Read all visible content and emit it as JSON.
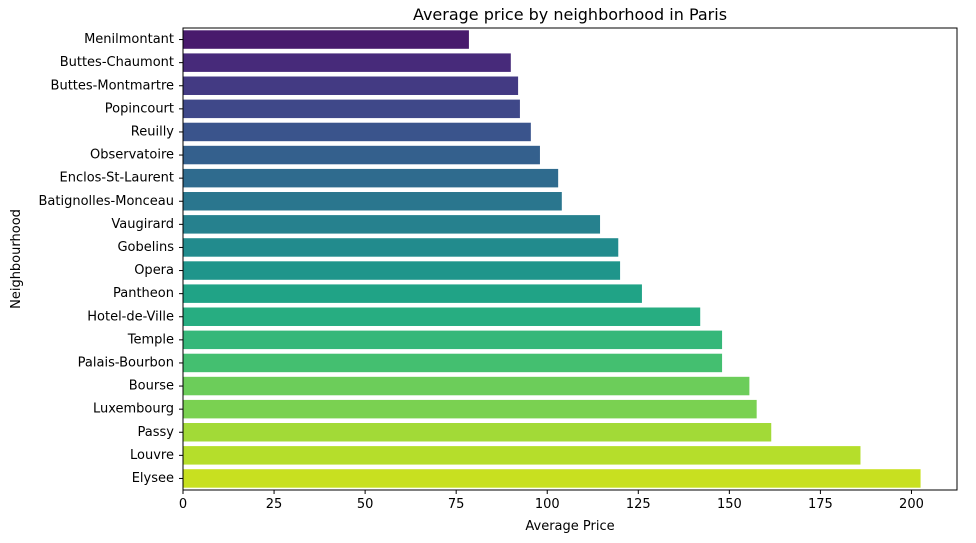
{
  "chart_data": {
    "type": "bar",
    "orientation": "horizontal",
    "title": "Average price by neighborhood in Paris",
    "xlabel": "Average Price",
    "ylabel": "Neighbourhood",
    "xlim": [
      0,
      212.5
    ],
    "xticks": [
      0,
      25,
      50,
      75,
      100,
      125,
      150,
      175,
      200
    ],
    "grid": false,
    "colormap": "viridis",
    "categories": [
      "Menilmontant",
      "Buttes-Chaumont",
      "Buttes-Montmartre",
      "Popincourt",
      "Reuilly",
      "Observatoire",
      "Enclos-St-Laurent",
      "Batignolles-Monceau",
      "Vaugirard",
      "Gobelins",
      "Opera",
      "Pantheon",
      "Hotel-de-Ville",
      "Temple",
      "Palais-Bourbon",
      "Bourse",
      "Luxembourg",
      "Passy",
      "Louvre",
      "Elysee"
    ],
    "values": [
      78.5,
      90,
      92,
      92.5,
      95.5,
      98,
      103,
      104,
      114.5,
      119.5,
      120,
      126,
      142,
      148,
      148,
      155.5,
      157.5,
      161.5,
      186,
      202.5
    ],
    "colors": [
      "#481a6c",
      "#472a7a",
      "#433a83",
      "#3f4889",
      "#3a548c",
      "#34608d",
      "#2f6b8e",
      "#2a768e",
      "#26818e",
      "#228b8d",
      "#1f958b",
      "#20a386",
      "#27ad81",
      "#35b779",
      "#44bf70",
      "#6ccd5a",
      "#7ad151",
      "#a2da37",
      "#b5de2b",
      "#c8e020"
    ]
  }
}
